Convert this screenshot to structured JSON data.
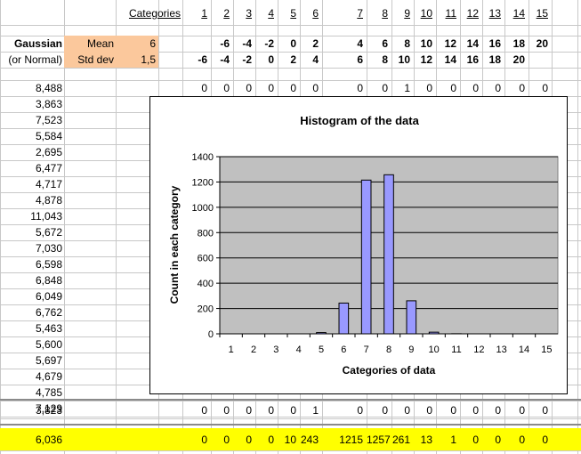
{
  "header": {
    "categories_label": "Categories",
    "categories": [
      "1",
      "2",
      "3",
      "4",
      "5",
      "6",
      "7",
      "8",
      "9",
      "10",
      "11",
      "12",
      "13",
      "14",
      "15"
    ]
  },
  "params": {
    "row1_label": "Gaussian",
    "row2_label": "(or Normal)",
    "mean_label": "Mean",
    "mean_value": "6",
    "std_label": "Std dev",
    "std_value": "1,5"
  },
  "bounds_row1": [
    "",
    "-6",
    "-4",
    "-2",
    "0",
    "2",
    "4",
    "6",
    "8",
    "10",
    "12",
    "14",
    "16",
    "18",
    "20"
  ],
  "bounds_row2": [
    "-6",
    "-4",
    "-2",
    "0",
    "2",
    "4",
    "6",
    "8",
    "10",
    "12",
    "14",
    "16",
    "18",
    "20",
    ""
  ],
  "samples": [
    "8,488",
    "3,863",
    "7,523",
    "5,584",
    "2,695",
    "6,477",
    "4,717",
    "4,878",
    "11,043",
    "5,672",
    "7,030",
    "6,598",
    "6,848",
    "6,049",
    "6,762",
    "5,463",
    "5,600",
    "5,697",
    "4,679",
    "4,785",
    "7,129"
  ],
  "first_sample_flags": [
    "0",
    "0",
    "0",
    "0",
    "0",
    "0",
    "0",
    "0",
    "1",
    "0",
    "0",
    "0",
    "0",
    "0",
    "0"
  ],
  "last_row": {
    "value": "3,823",
    "flags": [
      "0",
      "0",
      "0",
      "0",
      "0",
      "1",
      "0",
      "0",
      "0",
      "0",
      "0",
      "0",
      "0",
      "0",
      "0"
    ]
  },
  "totals_row": {
    "value": "6,036",
    "counts": [
      "0",
      "0",
      "0",
      "0",
      "10",
      "243",
      "1215",
      "1257",
      "261",
      "13",
      "1",
      "0",
      "0",
      "0",
      "0"
    ]
  },
  "colors": {
    "bar": "#9999ff",
    "plot_bg": "#c0c0c0",
    "highlight": "#ffff00",
    "param_fill": "#fbc89c"
  },
  "chart_data": {
    "type": "bar",
    "title": "Histogram of the data",
    "xlabel": "Categories of data",
    "ylabel": "Count in each category",
    "categories": [
      "1",
      "2",
      "3",
      "4",
      "5",
      "6",
      "7",
      "8",
      "9",
      "10",
      "11",
      "12",
      "13",
      "14",
      "15"
    ],
    "values": [
      0,
      0,
      0,
      0,
      10,
      243,
      1215,
      1257,
      261,
      13,
      1,
      0,
      0,
      0,
      0
    ],
    "ylim": [
      0,
      1400
    ],
    "yticks": [
      "0",
      "200",
      "400",
      "600",
      "800",
      "1000",
      "1200",
      "1400"
    ],
    "grid": true,
    "legend": "none"
  }
}
